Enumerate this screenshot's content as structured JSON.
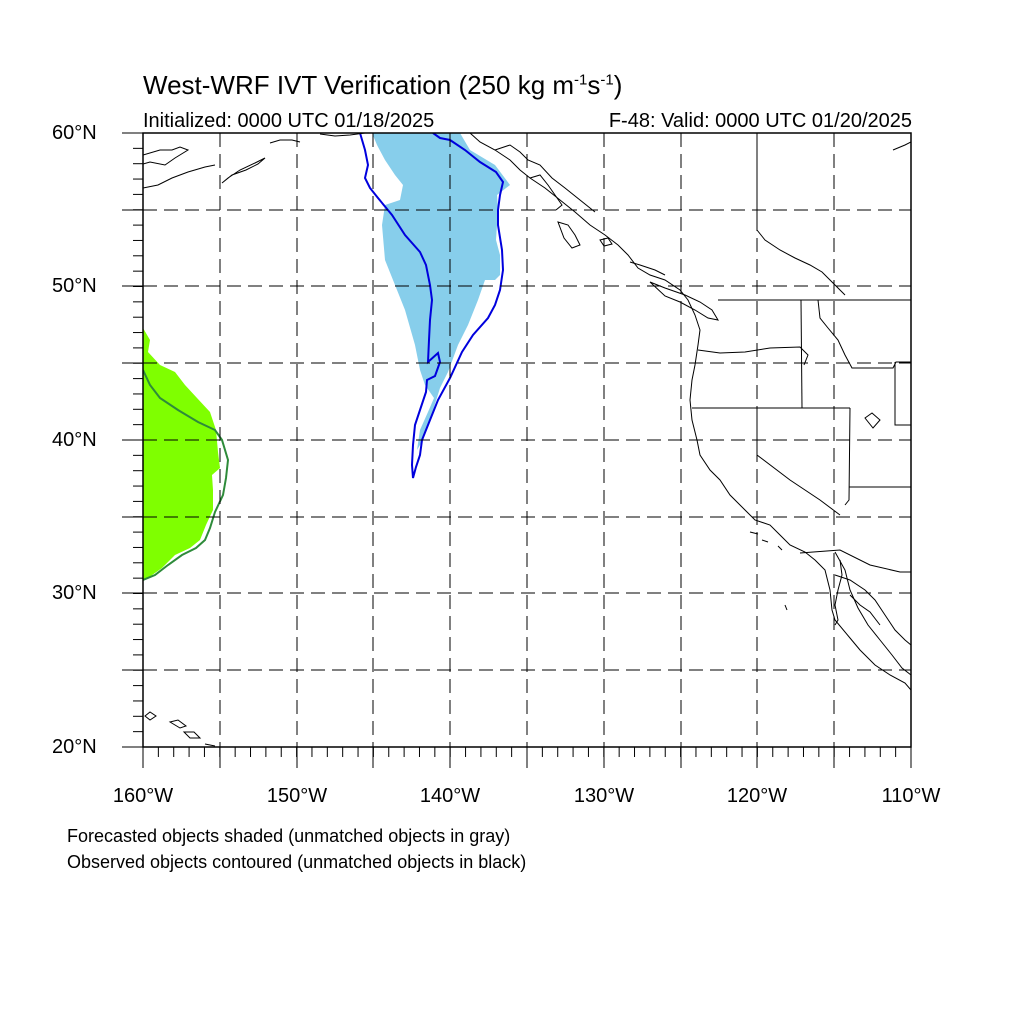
{
  "title": {
    "text": "West-WRF IVT Verification (250 kg m",
    "sup1": "-1",
    "mid": "s",
    "sup2": "-1",
    "end": ")"
  },
  "initialized": "Initialized: 0000 UTC 01/18/2025",
  "valid": "F-48: Valid: 0000 UTC 01/20/2025",
  "lat_labels": [
    "60°N",
    "50°N",
    "40°N",
    "30°N",
    "20°N"
  ],
  "lon_labels": [
    "160°W",
    "150°W",
    "140°W",
    "130°W",
    "120°W",
    "110°W"
  ],
  "caption_line1": "Forecasted objects shaded (unmatched objects in gray)",
  "caption_line2": "Observed objects contoured (unmatched objects in black)",
  "map_extent": {
    "lon": [
      -160,
      -110
    ],
    "lat": [
      20,
      60
    ]
  },
  "colors": {
    "forecast_object_1": "#87ceeb",
    "observed_object_1": "#0000dd",
    "forecast_object_2": "#7fff00",
    "observed_object_2": "#2e8b3a",
    "coastline": "#000000",
    "grid": "#000000"
  }
}
